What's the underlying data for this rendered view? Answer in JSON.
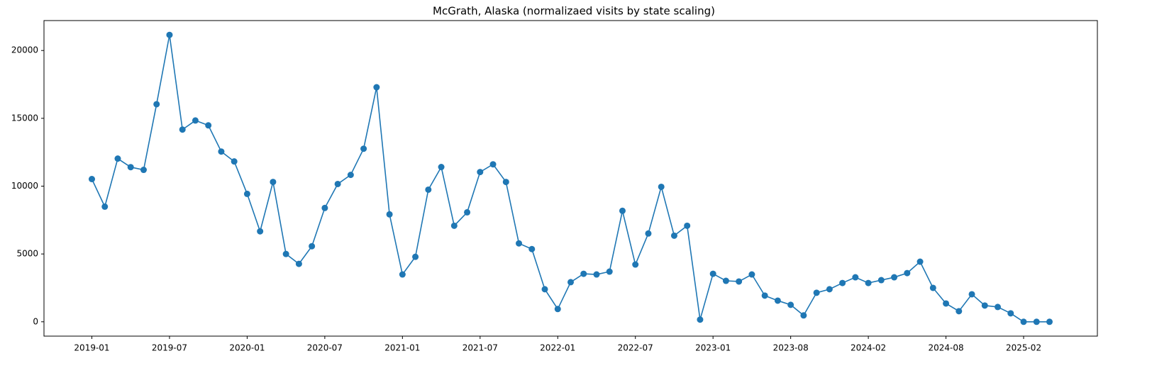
{
  "chart_data": {
    "type": "line",
    "title": "McGrath, Alaska (normalizaed visits by state scaling)",
    "categories": [
      "2019-01",
      null,
      null,
      null,
      null,
      null,
      "2019-07",
      null,
      null,
      null,
      null,
      null,
      "2020-01",
      null,
      null,
      null,
      null,
      null,
      "2020-07",
      null,
      null,
      null,
      null,
      null,
      "2021-01",
      null,
      null,
      null,
      null,
      null,
      "2021-07",
      null,
      null,
      null,
      null,
      null,
      "2022-01",
      null,
      null,
      null,
      null,
      null,
      "2022-07",
      null,
      null,
      null,
      null,
      null,
      "2023-01",
      null,
      null,
      null,
      null,
      null,
      "2023-08",
      null,
      null,
      null,
      null,
      null,
      "2024-02",
      null,
      null,
      null,
      null,
      null,
      "2024-08",
      null,
      null,
      null,
      null,
      null,
      "2025-02",
      null,
      null
    ],
    "values": [
      10520,
      8490,
      12030,
      11400,
      11200,
      16040,
      21150,
      14170,
      14840,
      14480,
      12550,
      11820,
      9430,
      6670,
      10310,
      5000,
      4270,
      5570,
      8390,
      10160,
      10830,
      12760,
      17290,
      7920,
      3490,
      4790,
      9740,
      11410,
      7080,
      8070,
      11040,
      11610,
      10310,
      5780,
      5360,
      2400,
      940,
      2920,
      3540,
      3490,
      3700,
      8180,
      4220,
      6510,
      9950,
      6350,
      7080,
      160,
      3540,
      3020,
      2970,
      3490,
      1930,
      1560,
      1250,
      470,
      2140,
      2400,
      2860,
      3280,
      2860,
      3070,
      3280,
      3590,
      4430,
      2500,
      1350,
      780,
      2030,
      1200,
      1090,
      625,
      0,
      0,
      0
    ],
    "color": "#1f77b4",
    "ylim": [
      -1057,
      22207
    ],
    "yticks": [
      0,
      5000,
      10000,
      15000,
      20000
    ],
    "grid": false
  }
}
